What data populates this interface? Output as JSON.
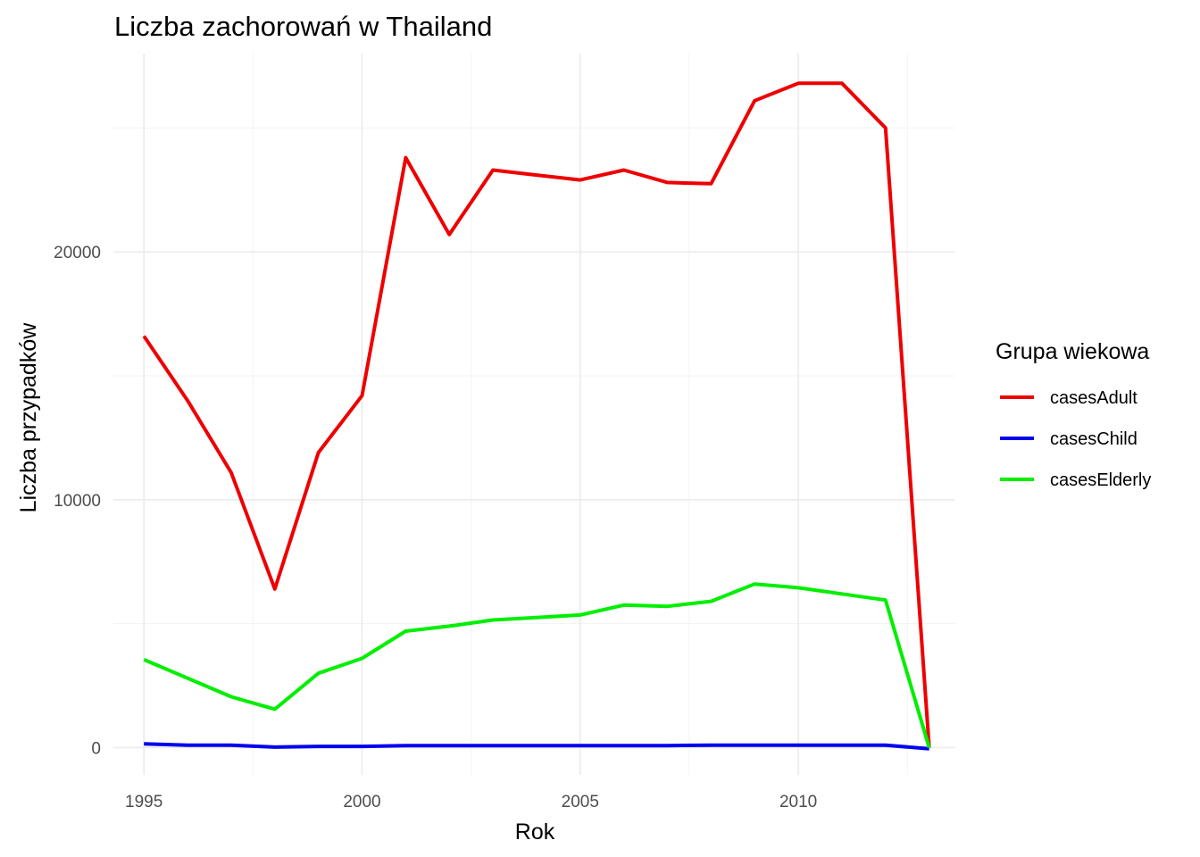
{
  "chart_data": {
    "type": "line",
    "title": "Liczba zachorowań w Thailand",
    "xlabel": "Rok",
    "ylabel": "Liczba przypadków",
    "xlim": [
      1994.3,
      2013.6
    ],
    "ylim": [
      -1100,
      28000
    ],
    "x_ticks": [
      1995,
      2000,
      2005,
      2010
    ],
    "y_ticks": [
      0,
      10000,
      20000
    ],
    "grid": true,
    "legend": {
      "title": "Grupa wiekowa",
      "position": "right"
    },
    "x": [
      1995,
      1996,
      1997,
      1998,
      1999,
      2000,
      2001,
      2002,
      2003,
      2004,
      2005,
      2006,
      2007,
      2008,
      2009,
      2010,
      2011,
      2012,
      2013
    ],
    "series": [
      {
        "name": "casesAdult",
        "color": "#ee0000",
        "values": [
          16600,
          14000,
          11100,
          6400,
          11900,
          14200,
          23800,
          20700,
          23300,
          23100,
          22900,
          23300,
          22800,
          22750,
          26100,
          26800,
          26800,
          25000,
          0
        ]
      },
      {
        "name": "casesChild",
        "color": "#0000ee",
        "values": [
          150,
          100,
          100,
          20,
          50,
          50,
          80,
          80,
          80,
          80,
          80,
          80,
          80,
          100,
          100,
          100,
          100,
          100,
          -50
        ]
      },
      {
        "name": "casesElderly",
        "color": "#00ee00",
        "values": [
          3550,
          2800,
          2050,
          1550,
          3000,
          3600,
          4700,
          4900,
          5150,
          5250,
          5350,
          5750,
          5700,
          5900,
          6600,
          6450,
          6200,
          5950,
          0
        ]
      }
    ]
  }
}
